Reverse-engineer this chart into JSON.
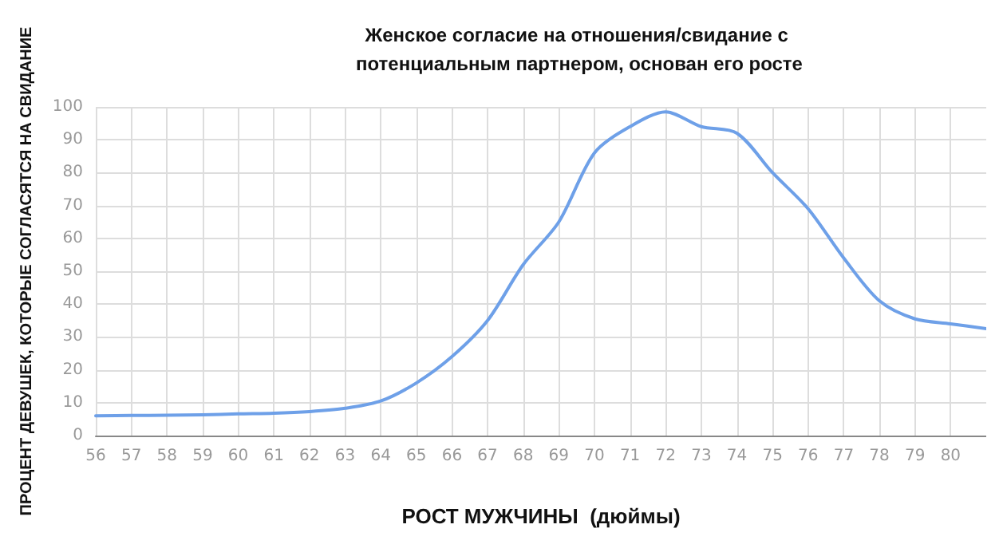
{
  "chart_data": {
    "type": "line",
    "title": "Женское согласие на отношения/свидание с потенциальным партнером, основан его росте",
    "xlabel": "РОСТ МУЖЧИНЫ  (дюймы)",
    "ylabel": "ПРОЦЕНТ ДЕВУШЕК, КОТОРЫЕ СОГЛАСЯТСЯ НА СВИДАНИЕ",
    "x": [
      56,
      57,
      58,
      59,
      60,
      61,
      62,
      63,
      64,
      65,
      66,
      67,
      68,
      69,
      70,
      71,
      72,
      73,
      74,
      75,
      76,
      77,
      78,
      79,
      80,
      81
    ],
    "series": [
      {
        "color": "#6ea0e8",
        "values": [
          6,
          6.1,
          6.2,
          6.3,
          6.6,
          6.8,
          7.3,
          8.3,
          10.5,
          16,
          24,
          35,
          52,
          65,
          86,
          94,
          98.5,
          94,
          92,
          80,
          69,
          54,
          41,
          35.5,
          34,
          32.5
        ]
      }
    ],
    "xlim": [
      56,
      81
    ],
    "xticks": [
      56,
      57,
      58,
      59,
      60,
      61,
      62,
      63,
      64,
      65,
      66,
      67,
      68,
      69,
      70,
      71,
      72,
      73,
      74,
      75,
      76,
      77,
      78,
      79,
      80
    ],
    "ylim": [
      0,
      100
    ],
    "yticks": [
      0,
      10,
      20,
      30,
      40,
      50,
      60,
      70,
      80,
      90,
      100
    ],
    "grid": true,
    "marker": "none",
    "line_style": "solid"
  }
}
